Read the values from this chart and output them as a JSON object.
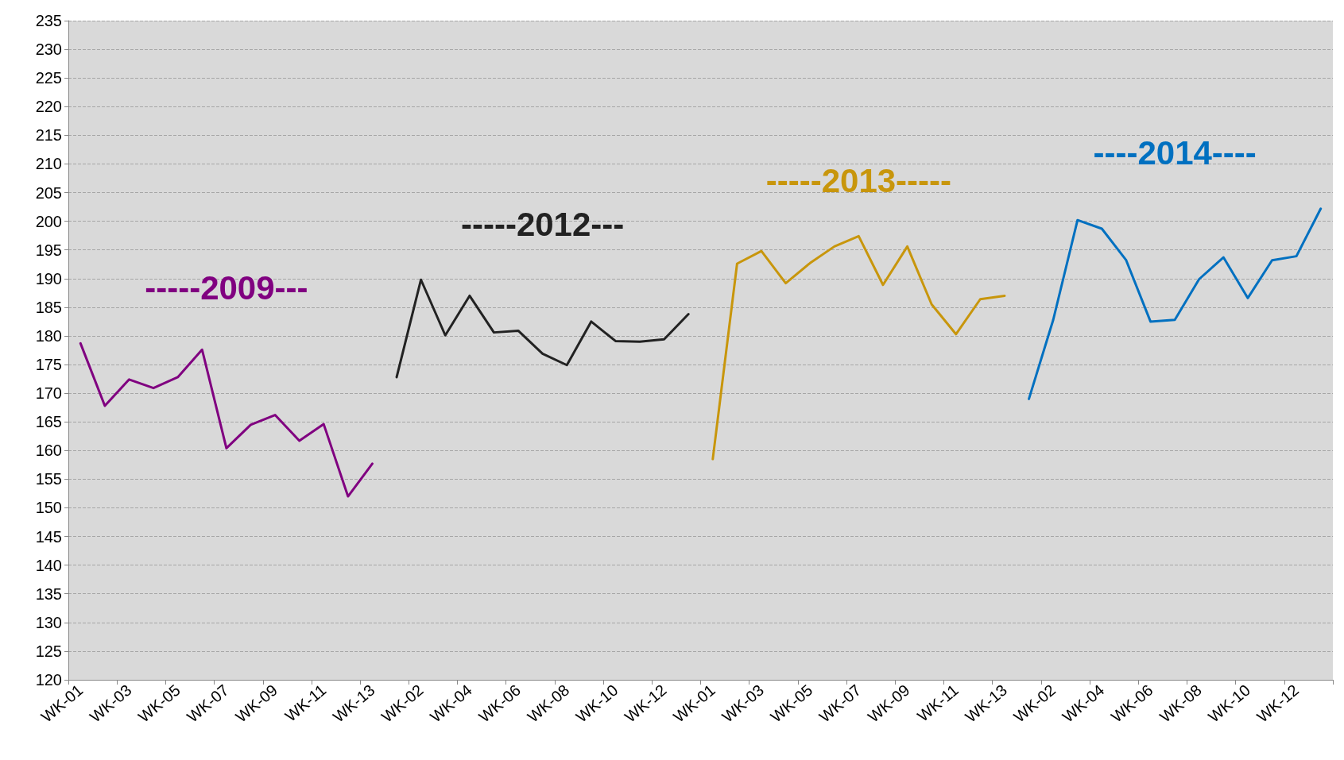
{
  "chart_data": {
    "type": "line",
    "categories": [
      "WK-01",
      null,
      "WK-03",
      null,
      "WK-05",
      null,
      "WK-07",
      null,
      "WK-09",
      null,
      "WK-11",
      null,
      "WK-13",
      null,
      "WK-02",
      null,
      "WK-04",
      null,
      "WK-06",
      null,
      "WK-08",
      null,
      "WK-10",
      null,
      "WK-12",
      null,
      "WK-01",
      null,
      "WK-03",
      null,
      "WK-05",
      null,
      "WK-07",
      null,
      "WK-09",
      null,
      "WK-11",
      null,
      "WK-13",
      null,
      "WK-02",
      null,
      "WK-04",
      null,
      "WK-06",
      null,
      "WK-08",
      null,
      "WK-10",
      null,
      "WK-12",
      null
    ],
    "series": [
      {
        "name": "-----2009---",
        "color": "#800080",
        "values": [
          178.7,
          167.8,
          172.4,
          170.9,
          172.8,
          177.6,
          160.4,
          164.5,
          166.2,
          161.7,
          164.6,
          152.0,
          157.7,
          null,
          null,
          null,
          null,
          null,
          null,
          null,
          null,
          null,
          null,
          null,
          null,
          null,
          null,
          null,
          null,
          null,
          null,
          null,
          null,
          null,
          null,
          null,
          null,
          null,
          null,
          null,
          null,
          null,
          null,
          null,
          null,
          null,
          null,
          null,
          null,
          null,
          null,
          null
        ]
      },
      {
        "name": "-----2012---",
        "color": "#222222",
        "values": [
          null,
          null,
          null,
          null,
          null,
          null,
          null,
          null,
          null,
          null,
          null,
          null,
          null,
          172.8,
          189.8,
          180.1,
          187.0,
          180.6,
          180.9,
          176.9,
          174.9,
          182.5,
          179.1,
          179.0,
          179.4,
          183.8,
          null,
          null,
          null,
          null,
          null,
          null,
          null,
          null,
          null,
          null,
          null,
          null,
          null,
          null,
          null,
          null,
          null,
          null,
          null,
          null,
          null,
          null,
          null,
          null,
          null,
          null
        ]
      },
      {
        "name": "-----2013-----",
        "color": "#c8960c",
        "values": [
          null,
          null,
          null,
          null,
          null,
          null,
          null,
          null,
          null,
          null,
          null,
          null,
          null,
          null,
          null,
          null,
          null,
          null,
          null,
          null,
          null,
          null,
          null,
          null,
          null,
          null,
          158.5,
          192.6,
          194.8,
          189.2,
          192.7,
          195.6,
          197.4,
          188.9,
          195.6,
          185.5,
          180.3,
          186.4,
          187.0,
          null,
          null,
          null,
          null,
          null,
          null,
          null,
          null,
          null,
          null,
          null,
          null,
          null
        ]
      },
      {
        "name": "----2014----",
        "color": "#0070c0",
        "values": [
          null,
          null,
          null,
          null,
          null,
          null,
          null,
          null,
          null,
          null,
          null,
          null,
          null,
          null,
          null,
          null,
          null,
          null,
          null,
          null,
          null,
          null,
          null,
          null,
          null,
          null,
          null,
          null,
          null,
          null,
          null,
          null,
          null,
          null,
          null,
          null,
          null,
          null,
          null,
          169.0,
          182.8,
          200.2,
          198.7,
          193.2,
          182.5,
          182.8,
          189.9,
          193.7,
          186.6,
          193.2,
          193.9,
          202.2
        ]
      }
    ],
    "ylim": [
      120,
      235
    ],
    "yticks": [
      120,
      125,
      130,
      135,
      140,
      145,
      150,
      155,
      160,
      165,
      170,
      175,
      180,
      185,
      190,
      195,
      200,
      205,
      210,
      215,
      220,
      225,
      230,
      235
    ],
    "grid": "y",
    "marker": "none",
    "line_style": "solid"
  }
}
